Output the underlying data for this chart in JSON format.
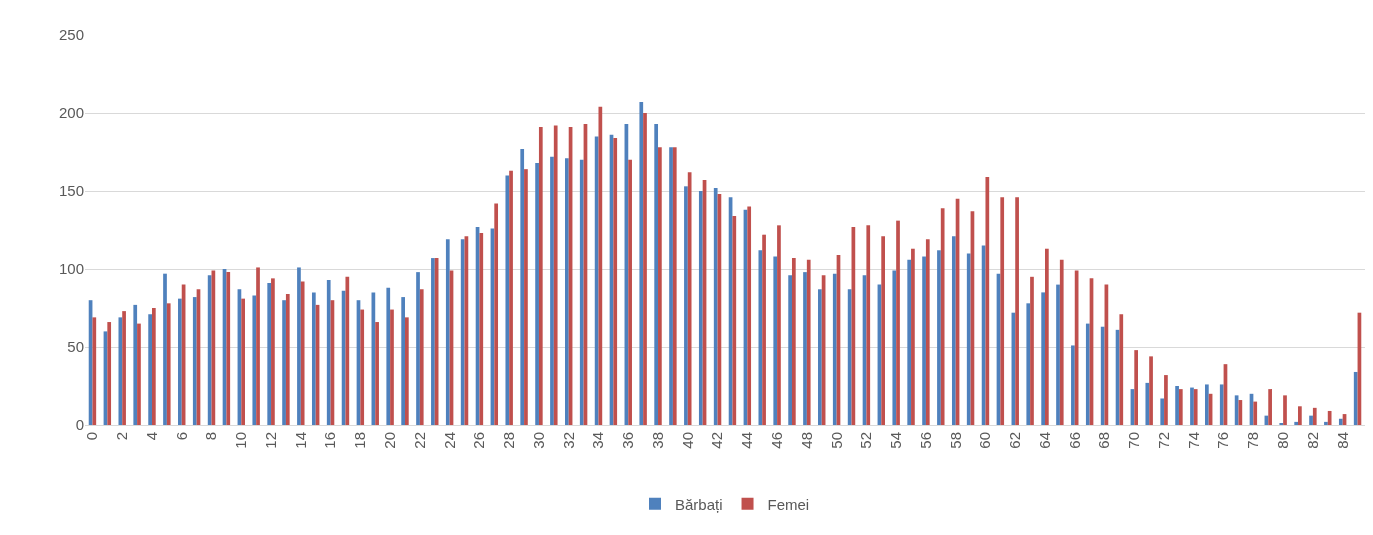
{
  "chart_data": {
    "type": "bar",
    "categories": [
      "0",
      null,
      "2",
      null,
      "4",
      null,
      "6",
      null,
      "8",
      null,
      "10",
      null,
      "12",
      null,
      "14",
      null,
      "16",
      null,
      "18",
      null,
      "20",
      null,
      "22",
      null,
      "24",
      null,
      "26",
      null,
      "28",
      null,
      "30",
      null,
      "32",
      null,
      "34",
      null,
      "36",
      null,
      "38",
      null,
      "40",
      null,
      "42",
      null,
      "44",
      null,
      "46",
      null,
      "48",
      null,
      "50",
      null,
      "52",
      null,
      "54",
      null,
      "56",
      null,
      "58",
      null,
      "60",
      null,
      "62",
      null,
      "64",
      null,
      "66",
      null,
      "68",
      null,
      "70",
      null,
      "72",
      null,
      "74",
      null,
      "76",
      null,
      "78",
      null,
      "80",
      null,
      "82",
      null,
      "84",
      null
    ],
    "series": [
      {
        "name": "Bărbați",
        "color": "#4f81bd",
        "values": [
          80,
          60,
          69,
          77,
          71,
          97,
          81,
          82,
          96,
          100,
          87,
          83,
          91,
          80,
          101,
          85,
          93,
          86,
          80,
          85,
          88,
          82,
          98,
          107,
          119,
          119,
          127,
          126,
          160,
          177,
          168,
          172,
          171,
          170,
          185,
          186,
          193,
          207,
          193,
          178,
          153,
          150,
          152,
          146,
          138,
          112,
          108,
          96,
          98,
          87,
          97,
          87,
          96,
          90,
          99,
          106,
          108,
          112,
          121,
          110,
          115,
          97,
          72,
          78,
          85,
          90,
          51,
          65,
          63,
          61,
          23,
          27,
          17,
          25,
          24,
          26,
          26,
          19,
          20,
          6,
          1,
          2,
          6,
          2,
          4,
          34
        ]
      },
      {
        "name": "Femei",
        "color": "#c0504d",
        "values": [
          69,
          66,
          73,
          65,
          75,
          78,
          90,
          87,
          99,
          98,
          81,
          101,
          94,
          84,
          92,
          77,
          80,
          95,
          74,
          66,
          74,
          69,
          87,
          107,
          99,
          121,
          123,
          142,
          163,
          164,
          191,
          192,
          191,
          193,
          204,
          184,
          170,
          200,
          178,
          178,
          162,
          157,
          148,
          134,
          140,
          122,
          128,
          107,
          106,
          96,
          109,
          127,
          128,
          121,
          131,
          113,
          119,
          139,
          145,
          137,
          159,
          146,
          146,
          95,
          113,
          106,
          99,
          94,
          90,
          71,
          48,
          44,
          32,
          23,
          23,
          20,
          39,
          16,
          15,
          23,
          19,
          12,
          11,
          9,
          7,
          72
        ]
      }
    ],
    "ylim": [
      0,
      250
    ],
    "yticks": [
      0,
      50,
      100,
      150,
      200,
      250
    ],
    "grid": "y",
    "legend": "bottom"
  }
}
